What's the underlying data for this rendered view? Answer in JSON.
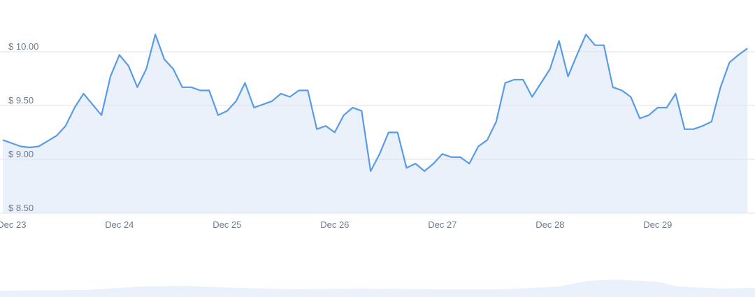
{
  "chart_data": {
    "type": "line",
    "categories": [
      null,
      "Dec 23",
      null,
      null,
      null,
      null,
      null,
      null,
      null,
      null,
      null,
      null,
      null,
      "Dec 24",
      null,
      null,
      null,
      null,
      null,
      null,
      null,
      null,
      null,
      null,
      null,
      "Dec 25",
      null,
      null,
      null,
      null,
      null,
      null,
      null,
      null,
      null,
      null,
      null,
      "Dec 26",
      null,
      null,
      null,
      null,
      null,
      null,
      null,
      null,
      null,
      null,
      null,
      "Dec 27",
      null,
      null,
      null,
      null,
      null,
      null,
      null,
      null,
      null,
      null,
      null,
      "Dec 28",
      null,
      null,
      null,
      null,
      null,
      null,
      null,
      null,
      null,
      null,
      null,
      "Dec 29",
      null,
      null,
      null,
      null,
      null,
      null,
      null,
      null,
      null,
      null
    ],
    "values": [
      9.18,
      9.15,
      9.12,
      9.11,
      9.12,
      9.17,
      9.22,
      9.31,
      9.48,
      9.61,
      9.51,
      9.41,
      9.77,
      9.97,
      9.87,
      9.67,
      9.84,
      10.16,
      9.93,
      9.84,
      9.67,
      9.67,
      9.64,
      9.64,
      9.41,
      9.45,
      9.54,
      9.71,
      9.48,
      9.51,
      9.54,
      9.61,
      9.58,
      9.64,
      9.64,
      9.28,
      9.31,
      9.25,
      9.41,
      9.48,
      9.45,
      8.89,
      9.05,
      9.25,
      9.25,
      8.92,
      8.96,
      8.89,
      8.96,
      9.05,
      9.02,
      9.02,
      8.96,
      9.12,
      9.18,
      9.35,
      9.71,
      9.74,
      9.74,
      9.58,
      9.71,
      9.84,
      10.1,
      9.77,
      9.97,
      10.16,
      10.06,
      10.06,
      9.67,
      9.64,
      9.58,
      9.38,
      9.41,
      9.48,
      9.48,
      9.61,
      9.28,
      9.28,
      9.31,
      9.35,
      9.67,
      9.9,
      9.97,
      10.03
    ],
    "color": "#5a9be6",
    "ylim": [
      8.5,
      10.48
    ],
    "yticks": [
      {
        "value": 8.5,
        "label": "$ 8.50"
      },
      {
        "value": 9,
        "label": "$ 9.00"
      },
      {
        "value": 9.5,
        "label": "$ 9.50"
      },
      {
        "value": 10,
        "label": "$ 10.00"
      }
    ],
    "grid": true
  }
}
